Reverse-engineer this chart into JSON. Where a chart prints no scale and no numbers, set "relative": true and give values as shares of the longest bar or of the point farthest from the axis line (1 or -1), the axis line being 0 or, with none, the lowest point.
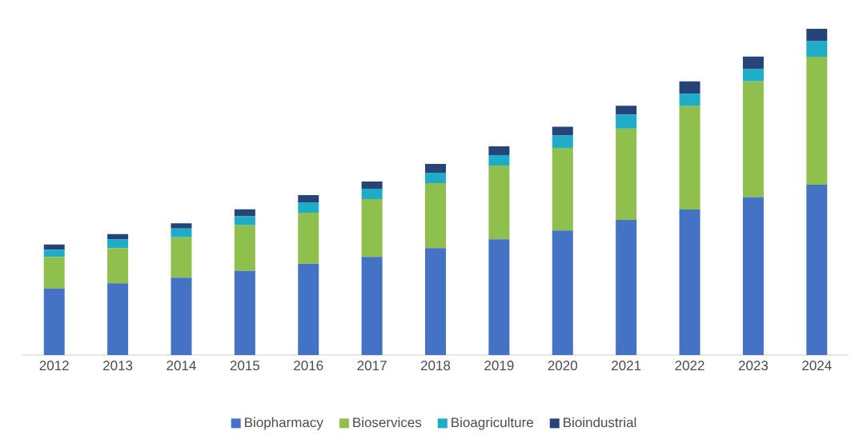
{
  "chart_data": {
    "type": "bar",
    "stacked": true,
    "relative": true,
    "legend": "bottom",
    "categories": [
      "2012",
      "2013",
      "2014",
      "2015",
      "2016",
      "2017",
      "2018",
      "2019",
      "2020",
      "2021",
      "2022",
      "2023",
      "2024"
    ],
    "series": [
      {
        "name": "Biopharmacy",
        "color": "#4472c4",
        "values": [
          0.204,
          0.22,
          0.237,
          0.258,
          0.28,
          0.301,
          0.328,
          0.355,
          0.382,
          0.414,
          0.446,
          0.484,
          0.522
        ]
      },
      {
        "name": "Bioservices",
        "color": "#8fbf4d",
        "values": [
          0.097,
          0.108,
          0.124,
          0.14,
          0.156,
          0.177,
          0.199,
          0.226,
          0.253,
          0.28,
          0.317,
          0.355,
          0.392
        ]
      },
      {
        "name": "Bioagriculture",
        "color": "#1eacc8",
        "values": [
          0.022,
          0.027,
          0.027,
          0.027,
          0.032,
          0.032,
          0.032,
          0.032,
          0.038,
          0.043,
          0.038,
          0.038,
          0.048
        ]
      },
      {
        "name": "Bioindustrial",
        "color": "#264478",
        "values": [
          0.016,
          0.016,
          0.016,
          0.022,
          0.022,
          0.022,
          0.027,
          0.027,
          0.027,
          0.027,
          0.038,
          0.038,
          0.038
        ]
      }
    ]
  }
}
